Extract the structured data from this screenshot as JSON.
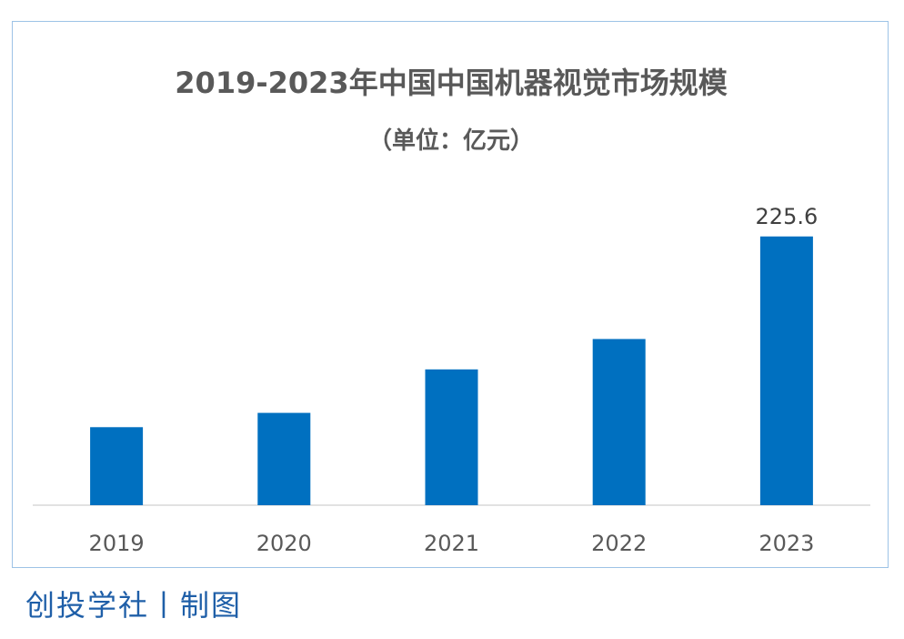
{
  "chart_data": {
    "type": "bar",
    "title": "2019-2023年中国中国机器视觉市场规模",
    "subtitle": "（单位：亿元）",
    "categories": [
      "2019",
      "2020",
      "2021",
      "2022",
      "2023"
    ],
    "values": [
      65.5,
      77.5,
      114,
      139.5,
      225.6
    ],
    "data_labels": [
      "",
      "",
      "",
      "",
      "225.6"
    ],
    "xlabel": "",
    "ylabel": "",
    "ylim": [
      0,
      230
    ],
    "grid": false,
    "legend": "none",
    "bar_color": "#0070c0",
    "axis_color": "#d9d9d9"
  },
  "footer": {
    "credit": "创投学社丨制图"
  }
}
